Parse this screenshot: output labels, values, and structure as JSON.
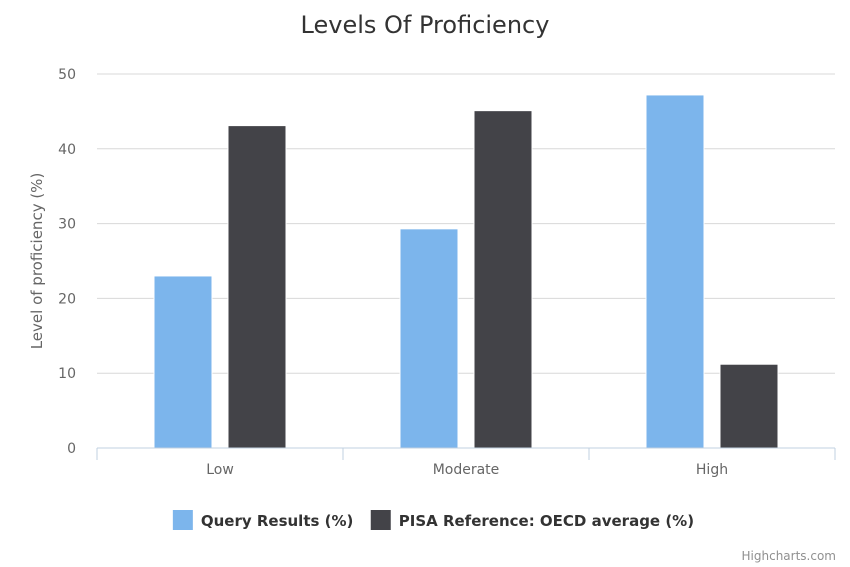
{
  "chart_data": {
    "type": "bar",
    "title": "Levels Of Proficiency",
    "ylabel": "Level of proficiency (%)",
    "xlabel": "",
    "categories": [
      "Low",
      "Moderate",
      "High"
    ],
    "ylim": [
      0,
      50
    ],
    "yticks": [
      0,
      10,
      20,
      30,
      40,
      50
    ],
    "grid": true,
    "legend_position": "bottom-center",
    "series": [
      {
        "name": "Query Results (%)",
        "color": "#7cb5ec",
        "values": [
          23,
          29.3,
          47.2
        ]
      },
      {
        "name": "PISA Reference: OECD average (%)",
        "color": "#434348",
        "values": [
          43.1,
          45.1,
          11.2
        ]
      }
    ]
  },
  "credits": "Highcharts.com"
}
